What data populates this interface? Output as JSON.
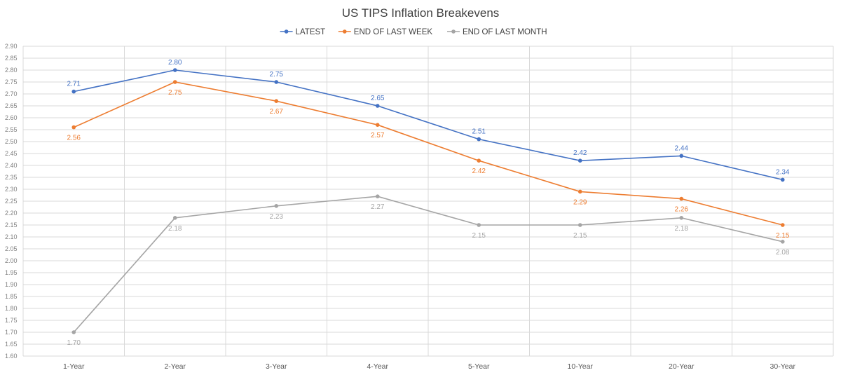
{
  "chart_data": {
    "type": "line",
    "title": "US TIPS Inflation Breakevens",
    "xlabel": "",
    "ylabel": "",
    "categories": [
      "1-Year",
      "2-Year",
      "3-Year",
      "4-Year",
      "5-Year",
      "10-Year",
      "20-Year",
      "30-Year"
    ],
    "ylim": [
      1.6,
      2.9
    ],
    "ytick_step": 0.05,
    "grid": true,
    "legend": "top-center",
    "series": [
      {
        "name": "LATEST",
        "color": "#4472C4",
        "values": [
          2.71,
          2.8,
          2.75,
          2.65,
          2.51,
          2.42,
          2.44,
          2.34
        ],
        "labels": [
          "2.71",
          "2.80",
          "2.75",
          "2.65",
          "2.51",
          "2.42",
          "2.44",
          "2.34"
        ],
        "label_position": "above"
      },
      {
        "name": "END OF LAST WEEK",
        "color": "#ED7D31",
        "values": [
          2.56,
          2.75,
          2.67,
          2.57,
          2.42,
          2.29,
          2.26,
          2.15
        ],
        "labels": [
          "2.56",
          "2.75",
          "2.67",
          "2.57",
          "2.42",
          "2.29",
          "2.26",
          "2.15"
        ],
        "label_position": "below"
      },
      {
        "name": "END OF LAST MONTH",
        "color": "#A5A5A5",
        "values": [
          1.7,
          2.18,
          2.23,
          2.27,
          2.15,
          2.15,
          2.18,
          2.08
        ],
        "labels": [
          "1.70",
          "2.18",
          "2.23",
          "2.27",
          "2.15",
          "2.15",
          "2.18",
          "2.08"
        ],
        "label_position": "below"
      }
    ]
  }
}
